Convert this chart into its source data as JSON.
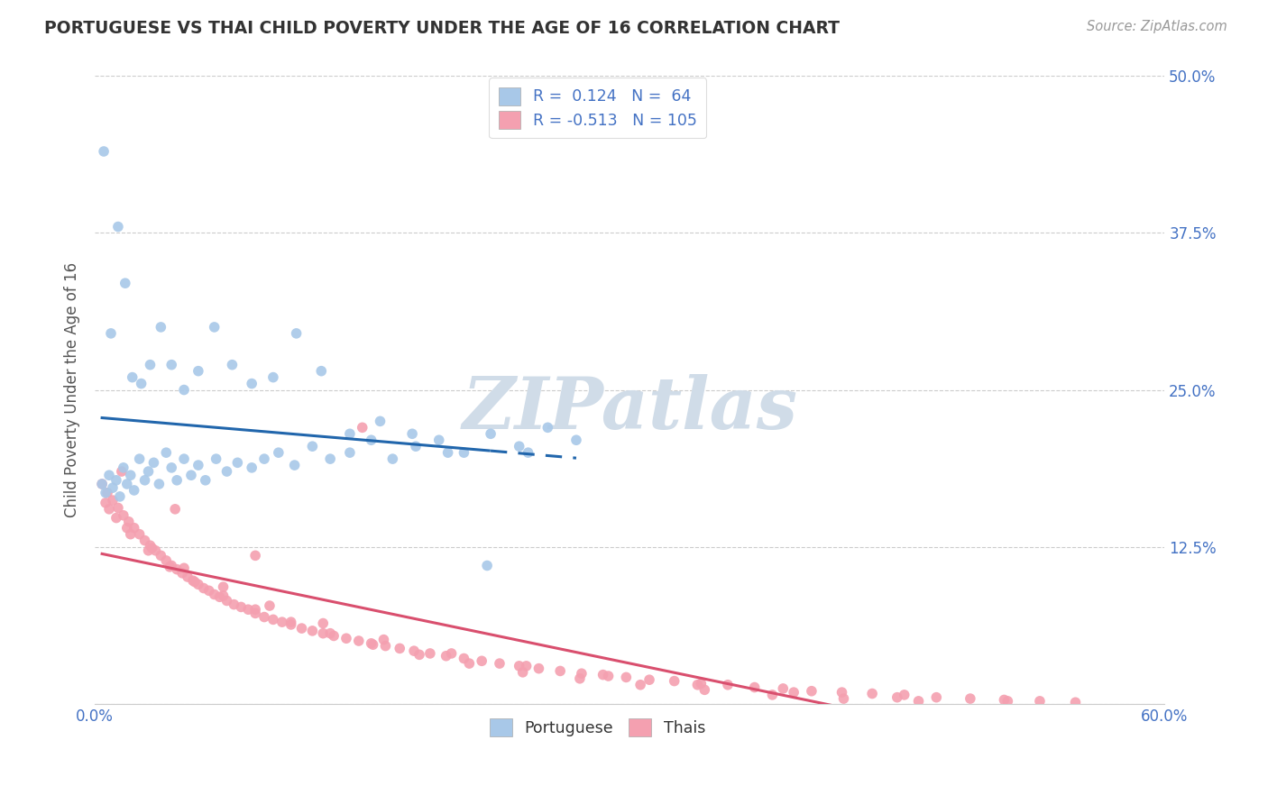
{
  "title": "PORTUGUESE VS THAI CHILD POVERTY UNDER THE AGE OF 16 CORRELATION CHART",
  "source": "Source: ZipAtlas.com",
  "ylabel": "Child Poverty Under the Age of 16",
  "xlim": [
    0.0,
    0.6
  ],
  "ylim": [
    0.0,
    0.5
  ],
  "yticks": [
    0.0,
    0.125,
    0.25,
    0.375,
    0.5
  ],
  "yticklabels_right": [
    "",
    "12.5%",
    "25.0%",
    "37.5%",
    "50.0%"
  ],
  "xtick_left_label": "0.0%",
  "xtick_right_label": "60.0%",
  "portuguese_R": 0.124,
  "portuguese_N": 64,
  "thai_R": -0.513,
  "thai_N": 105,
  "blue_color": "#a8c8e8",
  "pink_color": "#f4a0b0",
  "blue_line_color": "#2166ac",
  "pink_line_color": "#d94f6e",
  "tick_label_color": "#4472c4",
  "watermark_color": "#d0dce8",
  "portuguese_x": [
    0.004,
    0.006,
    0.008,
    0.01,
    0.012,
    0.014,
    0.016,
    0.018,
    0.02,
    0.022,
    0.025,
    0.028,
    0.03,
    0.033,
    0.036,
    0.04,
    0.043,
    0.046,
    0.05,
    0.054,
    0.058,
    0.062,
    0.068,
    0.074,
    0.08,
    0.088,
    0.095,
    0.103,
    0.112,
    0.122,
    0.132,
    0.143,
    0.155,
    0.167,
    0.18,
    0.193,
    0.207,
    0.222,
    0.238,
    0.254,
    0.27,
    0.005,
    0.009,
    0.013,
    0.017,
    0.021,
    0.026,
    0.031,
    0.037,
    0.043,
    0.05,
    0.058,
    0.067,
    0.077,
    0.088,
    0.1,
    0.113,
    0.127,
    0.143,
    0.16,
    0.178,
    0.198,
    0.22,
    0.243
  ],
  "portuguese_y": [
    0.175,
    0.168,
    0.182,
    0.172,
    0.178,
    0.165,
    0.188,
    0.175,
    0.182,
    0.17,
    0.195,
    0.178,
    0.185,
    0.192,
    0.175,
    0.2,
    0.188,
    0.178,
    0.195,
    0.182,
    0.19,
    0.178,
    0.195,
    0.185,
    0.192,
    0.188,
    0.195,
    0.2,
    0.19,
    0.205,
    0.195,
    0.2,
    0.21,
    0.195,
    0.205,
    0.21,
    0.2,
    0.215,
    0.205,
    0.22,
    0.21,
    0.44,
    0.295,
    0.38,
    0.335,
    0.26,
    0.255,
    0.27,
    0.3,
    0.27,
    0.25,
    0.265,
    0.3,
    0.27,
    0.255,
    0.26,
    0.295,
    0.265,
    0.215,
    0.225,
    0.215,
    0.2,
    0.11,
    0.2
  ],
  "thai_x": [
    0.004,
    0.007,
    0.01,
    0.013,
    0.016,
    0.019,
    0.022,
    0.025,
    0.028,
    0.031,
    0.034,
    0.037,
    0.04,
    0.043,
    0.046,
    0.049,
    0.052,
    0.055,
    0.058,
    0.061,
    0.064,
    0.067,
    0.07,
    0.074,
    0.078,
    0.082,
    0.086,
    0.09,
    0.095,
    0.1,
    0.105,
    0.11,
    0.116,
    0.122,
    0.128,
    0.134,
    0.141,
    0.148,
    0.155,
    0.163,
    0.171,
    0.179,
    0.188,
    0.197,
    0.207,
    0.217,
    0.227,
    0.238,
    0.249,
    0.261,
    0.273,
    0.285,
    0.298,
    0.311,
    0.325,
    0.34,
    0.355,
    0.37,
    0.386,
    0.402,
    0.419,
    0.436,
    0.454,
    0.472,
    0.491,
    0.51,
    0.53,
    0.55,
    0.006,
    0.012,
    0.02,
    0.03,
    0.042,
    0.056,
    0.072,
    0.09,
    0.11,
    0.132,
    0.156,
    0.182,
    0.21,
    0.24,
    0.272,
    0.306,
    0.342,
    0.38,
    0.42,
    0.462,
    0.008,
    0.018,
    0.032,
    0.05,
    0.072,
    0.098,
    0.128,
    0.162,
    0.2,
    0.242,
    0.288,
    0.338,
    0.392,
    0.45,
    0.512,
    0.015,
    0.045,
    0.09,
    0.15
  ],
  "thai_y": [
    0.175,
    0.168,
    0.162,
    0.156,
    0.15,
    0.145,
    0.14,
    0.135,
    0.13,
    0.126,
    0.122,
    0.118,
    0.114,
    0.11,
    0.107,
    0.104,
    0.101,
    0.098,
    0.095,
    0.092,
    0.09,
    0.087,
    0.085,
    0.082,
    0.079,
    0.077,
    0.075,
    0.072,
    0.069,
    0.067,
    0.065,
    0.063,
    0.06,
    0.058,
    0.056,
    0.054,
    0.052,
    0.05,
    0.048,
    0.046,
    0.044,
    0.042,
    0.04,
    0.038,
    0.036,
    0.034,
    0.032,
    0.03,
    0.028,
    0.026,
    0.024,
    0.023,
    0.021,
    0.019,
    0.018,
    0.016,
    0.015,
    0.013,
    0.012,
    0.01,
    0.009,
    0.008,
    0.007,
    0.005,
    0.004,
    0.003,
    0.002,
    0.001,
    0.16,
    0.148,
    0.135,
    0.122,
    0.109,
    0.097,
    0.086,
    0.075,
    0.065,
    0.056,
    0.047,
    0.039,
    0.032,
    0.025,
    0.02,
    0.015,
    0.011,
    0.007,
    0.004,
    0.002,
    0.155,
    0.14,
    0.124,
    0.108,
    0.093,
    0.078,
    0.064,
    0.051,
    0.04,
    0.03,
    0.022,
    0.015,
    0.009,
    0.005,
    0.002,
    0.185,
    0.155,
    0.118,
    0.22
  ]
}
